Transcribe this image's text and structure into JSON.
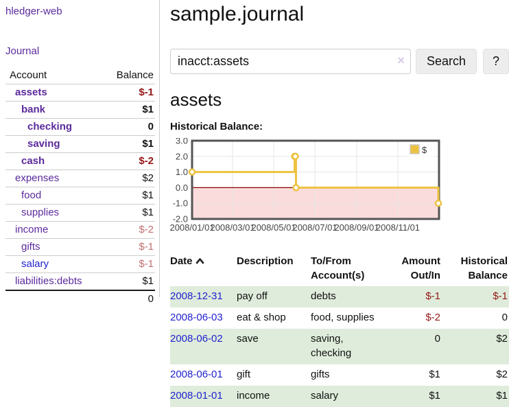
{
  "colors": {
    "link_purple": "#5b2a9b",
    "link_blue": "#2222cf",
    "negative_strong": "#941616",
    "negative_soft": "#c17070",
    "row_stripe_green": "#dfecdb",
    "series_yellow": "#edc240",
    "negative_region_pink": "#fbdcdc",
    "zero_line_red": "#8b0000"
  },
  "sidebar": {
    "brand": "hledger-web",
    "journal_link": "Journal",
    "accounts_table": {
      "headers": {
        "account": "Account",
        "balance": "Balance"
      },
      "rows": [
        {
          "account": "assets",
          "balance": "$-1",
          "depth": 1,
          "bold": true,
          "balance_class": "neg"
        },
        {
          "account": "bank",
          "balance": "$1",
          "depth": 2,
          "bold": true,
          "balance_class": ""
        },
        {
          "account": "checking",
          "balance": "0",
          "depth": 3,
          "bold": true,
          "balance_class": ""
        },
        {
          "account": "saving",
          "balance": "$1",
          "depth": 3,
          "bold": true,
          "balance_class": ""
        },
        {
          "account": "cash",
          "balance": "$-2",
          "depth": 2,
          "bold": true,
          "balance_class": "neg"
        },
        {
          "account": "expenses",
          "balance": "$2",
          "depth": 1,
          "bold": false,
          "balance_class": ""
        },
        {
          "account": "food",
          "balance": "$1",
          "depth": 2,
          "bold": false,
          "balance_class": ""
        },
        {
          "account": "supplies",
          "balance": "$1",
          "depth": 2,
          "bold": false,
          "balance_class": ""
        },
        {
          "account": "income",
          "balance": "$-2",
          "depth": 1,
          "bold": false,
          "balance_class": "negsoft"
        },
        {
          "account": "gifts",
          "balance": "$-1",
          "depth": 2,
          "bold": false,
          "balance_class": "negsoft"
        },
        {
          "account": "salary",
          "balance": "$-1",
          "depth": 2,
          "bold": false,
          "balance_class": "negsoft",
          "link": "blue"
        },
        {
          "account": "liabilities:debts",
          "balance": "$1",
          "depth": 1,
          "bold": false,
          "balance_class": ""
        }
      ],
      "total": "0"
    }
  },
  "main": {
    "title": "sample.journal",
    "search": {
      "value": "inacct:assets",
      "clear_icon": "×",
      "button": "Search",
      "help_button": "?"
    },
    "account_heading": "assets",
    "chart_label": "Historical Balance:",
    "register_table": {
      "headers": [
        "Date",
        "Description",
        "To/From Account(s)",
        "Amount Out/In",
        "Historical Balance"
      ],
      "rows": [
        {
          "date": "2008-12-31",
          "description": "pay off",
          "accounts": "debts",
          "amount": "$-1",
          "amount_neg": true,
          "balance": "$-1",
          "balance_neg": true
        },
        {
          "date": "2008-06-03",
          "description": "eat & shop",
          "accounts": "food, supplies",
          "amount": "$-2",
          "amount_neg": true,
          "balance": "0",
          "balance_neg": false
        },
        {
          "date": "2008-06-02",
          "description": "save",
          "accounts": "saving, checking",
          "amount": "0",
          "amount_neg": false,
          "balance": "$2",
          "balance_neg": false
        },
        {
          "date": "2008-06-01",
          "description": "gift",
          "accounts": "gifts",
          "amount": "$1",
          "amount_neg": false,
          "balance": "$2",
          "balance_neg": false
        },
        {
          "date": "2008-01-01",
          "description": "income",
          "accounts": "salary",
          "amount": "$1",
          "amount_neg": false,
          "balance": "$1",
          "balance_neg": false
        }
      ]
    }
  },
  "chart_data": {
    "type": "line",
    "step": true,
    "title": "Historical Balance",
    "xlim": [
      "2008-01-01",
      "2009-01-01"
    ],
    "ylim": [
      -2,
      3
    ],
    "y_ticks": [
      "3.0",
      "2.0",
      "1.0",
      "0.0",
      "-1.0",
      "-2.0"
    ],
    "x_ticks": [
      {
        "label": "2008/01/01",
        "date": "2008-01-01"
      },
      {
        "label": "2008/03/01",
        "date": "2008-03-01"
      },
      {
        "label": "2008/05/01",
        "date": "2008-05-01"
      },
      {
        "label": "2008/07/01",
        "date": "2008-07-01"
      },
      {
        "label": "2008/09/01",
        "date": "2008-09-01"
      },
      {
        "label": "2008/11/01",
        "date": "2008-11-01"
      }
    ],
    "series": [
      {
        "name": "$",
        "color": "#edc240",
        "points": [
          {
            "date": "2008-01-01",
            "value": 1
          },
          {
            "date": "2008-06-01",
            "value": 2
          },
          {
            "date": "2008-06-02",
            "value": 2
          },
          {
            "date": "2008-06-03",
            "value": 0
          },
          {
            "date": "2008-12-31",
            "value": -1
          }
        ]
      }
    ],
    "legend_position": "top-right",
    "grid": true,
    "negative_fill": "#fbdcdc",
    "zero_line_color": "#8b0000",
    "border_color": "#545454"
  }
}
